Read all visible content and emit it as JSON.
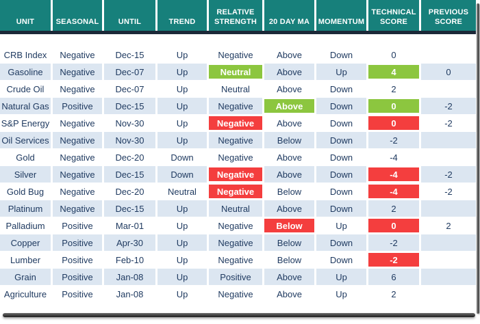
{
  "chart_data": {
    "type": "table",
    "columns": [
      {
        "id": "unit",
        "label": "UNIT"
      },
      {
        "id": "seasonal",
        "label": "SEASONAL"
      },
      {
        "id": "until",
        "label": "UNTIL"
      },
      {
        "id": "trend",
        "label": "TREND"
      },
      {
        "id": "relative-strength",
        "label": "RELATIVE STRENGTH"
      },
      {
        "id": "20-day-ma",
        "label": "20 DAY MA"
      },
      {
        "id": "momentum",
        "label": "MOMENTUM"
      },
      {
        "id": "technical-score",
        "label": "TECHNICAL SCORE"
      },
      {
        "id": "previous-score",
        "label": "PREVIOUS SCORE"
      }
    ],
    "rows": [
      {
        "cells": [
          {
            "t": "CRB Index"
          },
          {
            "t": "Negative"
          },
          {
            "t": "Dec-15"
          },
          {
            "t": "Up"
          },
          {
            "t": "Negative"
          },
          {
            "t": "Above"
          },
          {
            "t": "Down"
          },
          {
            "t": "0"
          },
          {
            "t": ""
          }
        ]
      },
      {
        "cells": [
          {
            "t": "Gasoline"
          },
          {
            "t": "Negative"
          },
          {
            "t": "Dec-07"
          },
          {
            "t": "Up"
          },
          {
            "t": "Neutral",
            "h": "green"
          },
          {
            "t": "Above"
          },
          {
            "t": "Up"
          },
          {
            "t": "4",
            "h": "green"
          },
          {
            "t": "0"
          }
        ]
      },
      {
        "cells": [
          {
            "t": "Crude Oil"
          },
          {
            "t": "Negative"
          },
          {
            "t": "Dec-07"
          },
          {
            "t": "Up"
          },
          {
            "t": "Neutral"
          },
          {
            "t": "Above"
          },
          {
            "t": "Down"
          },
          {
            "t": "2"
          },
          {
            "t": ""
          }
        ]
      },
      {
        "cells": [
          {
            "t": "Natural Gas"
          },
          {
            "t": "Positive"
          },
          {
            "t": "Dec-15"
          },
          {
            "t": "Up"
          },
          {
            "t": "Negative"
          },
          {
            "t": "Above",
            "h": "green"
          },
          {
            "t": "Down"
          },
          {
            "t": "0",
            "h": "green"
          },
          {
            "t": "-2"
          }
        ]
      },
      {
        "cells": [
          {
            "t": "S&P Energy"
          },
          {
            "t": "Negative"
          },
          {
            "t": "Nov-30"
          },
          {
            "t": "Up"
          },
          {
            "t": "Negative",
            "h": "red"
          },
          {
            "t": "Above"
          },
          {
            "t": "Down"
          },
          {
            "t": "0",
            "h": "red"
          },
          {
            "t": "-2"
          }
        ]
      },
      {
        "cells": [
          {
            "t": "Oil Services"
          },
          {
            "t": "Negative"
          },
          {
            "t": "Nov-30"
          },
          {
            "t": "Up"
          },
          {
            "t": "Negative"
          },
          {
            "t": "Below"
          },
          {
            "t": "Down"
          },
          {
            "t": "-2"
          },
          {
            "t": ""
          }
        ]
      },
      {
        "cells": [
          {
            "t": "Gold"
          },
          {
            "t": "Negative"
          },
          {
            "t": "Dec-20"
          },
          {
            "t": "Down"
          },
          {
            "t": "Negative"
          },
          {
            "t": "Above"
          },
          {
            "t": "Down"
          },
          {
            "t": "-4"
          },
          {
            "t": ""
          }
        ]
      },
      {
        "cells": [
          {
            "t": "Silver"
          },
          {
            "t": "Negative"
          },
          {
            "t": "Dec-15"
          },
          {
            "t": "Down"
          },
          {
            "t": "Negative",
            "h": "red"
          },
          {
            "t": "Above"
          },
          {
            "t": "Down"
          },
          {
            "t": "-4",
            "h": "red"
          },
          {
            "t": "-2"
          }
        ]
      },
      {
        "cells": [
          {
            "t": "Gold Bug"
          },
          {
            "t": "Negative"
          },
          {
            "t": "Dec-20"
          },
          {
            "t": "Neutral"
          },
          {
            "t": "Negative",
            "h": "red"
          },
          {
            "t": "Below"
          },
          {
            "t": "Down"
          },
          {
            "t": "-4",
            "h": "red"
          },
          {
            "t": "-2"
          }
        ]
      },
      {
        "cells": [
          {
            "t": "Platinum"
          },
          {
            "t": "Negative"
          },
          {
            "t": "Dec-15"
          },
          {
            "t": "Up"
          },
          {
            "t": "Neutral"
          },
          {
            "t": "Above"
          },
          {
            "t": "Down"
          },
          {
            "t": "2"
          },
          {
            "t": ""
          }
        ]
      },
      {
        "cells": [
          {
            "t": "Palladium"
          },
          {
            "t": "Positive"
          },
          {
            "t": "Mar-01"
          },
          {
            "t": "Up"
          },
          {
            "t": "Negative"
          },
          {
            "t": "Below",
            "h": "red"
          },
          {
            "t": "Up"
          },
          {
            "t": "0",
            "h": "red"
          },
          {
            "t": "2"
          }
        ]
      },
      {
        "cells": [
          {
            "t": "Copper"
          },
          {
            "t": "Positive"
          },
          {
            "t": "Apr-30"
          },
          {
            "t": "Up"
          },
          {
            "t": "Negative"
          },
          {
            "t": "Below"
          },
          {
            "t": "Down"
          },
          {
            "t": "-2"
          },
          {
            "t": ""
          }
        ]
      },
      {
        "cells": [
          {
            "t": "Lumber"
          },
          {
            "t": "Positive"
          },
          {
            "t": "Feb-10"
          },
          {
            "t": "Up"
          },
          {
            "t": "Negative"
          },
          {
            "t": "Below"
          },
          {
            "t": "Down"
          },
          {
            "t": "-2",
            "h": "red"
          },
          {
            "t": ""
          }
        ]
      },
      {
        "cells": [
          {
            "t": "Grain"
          },
          {
            "t": "Positive"
          },
          {
            "t": "Jan-08"
          },
          {
            "t": "Up"
          },
          {
            "t": "Positive"
          },
          {
            "t": "Above"
          },
          {
            "t": "Up"
          },
          {
            "t": "6"
          },
          {
            "t": ""
          }
        ]
      },
      {
        "cells": [
          {
            "t": "Agriculture"
          },
          {
            "t": "Positive"
          },
          {
            "t": "Jan-08"
          },
          {
            "t": "Up"
          },
          {
            "t": "Negative"
          },
          {
            "t": "Above"
          },
          {
            "t": "Up"
          },
          {
            "t": "2"
          },
          {
            "t": ""
          }
        ]
      }
    ]
  },
  "colors": {
    "header_bg": "#17807B",
    "header_text": "#FFFFFF",
    "body_text": "#1F3A60",
    "stripe_bg": "#DCE6F1",
    "highlight_green": "#8CC63F",
    "highlight_red": "#F43E3E",
    "divider": "#1B2838"
  }
}
